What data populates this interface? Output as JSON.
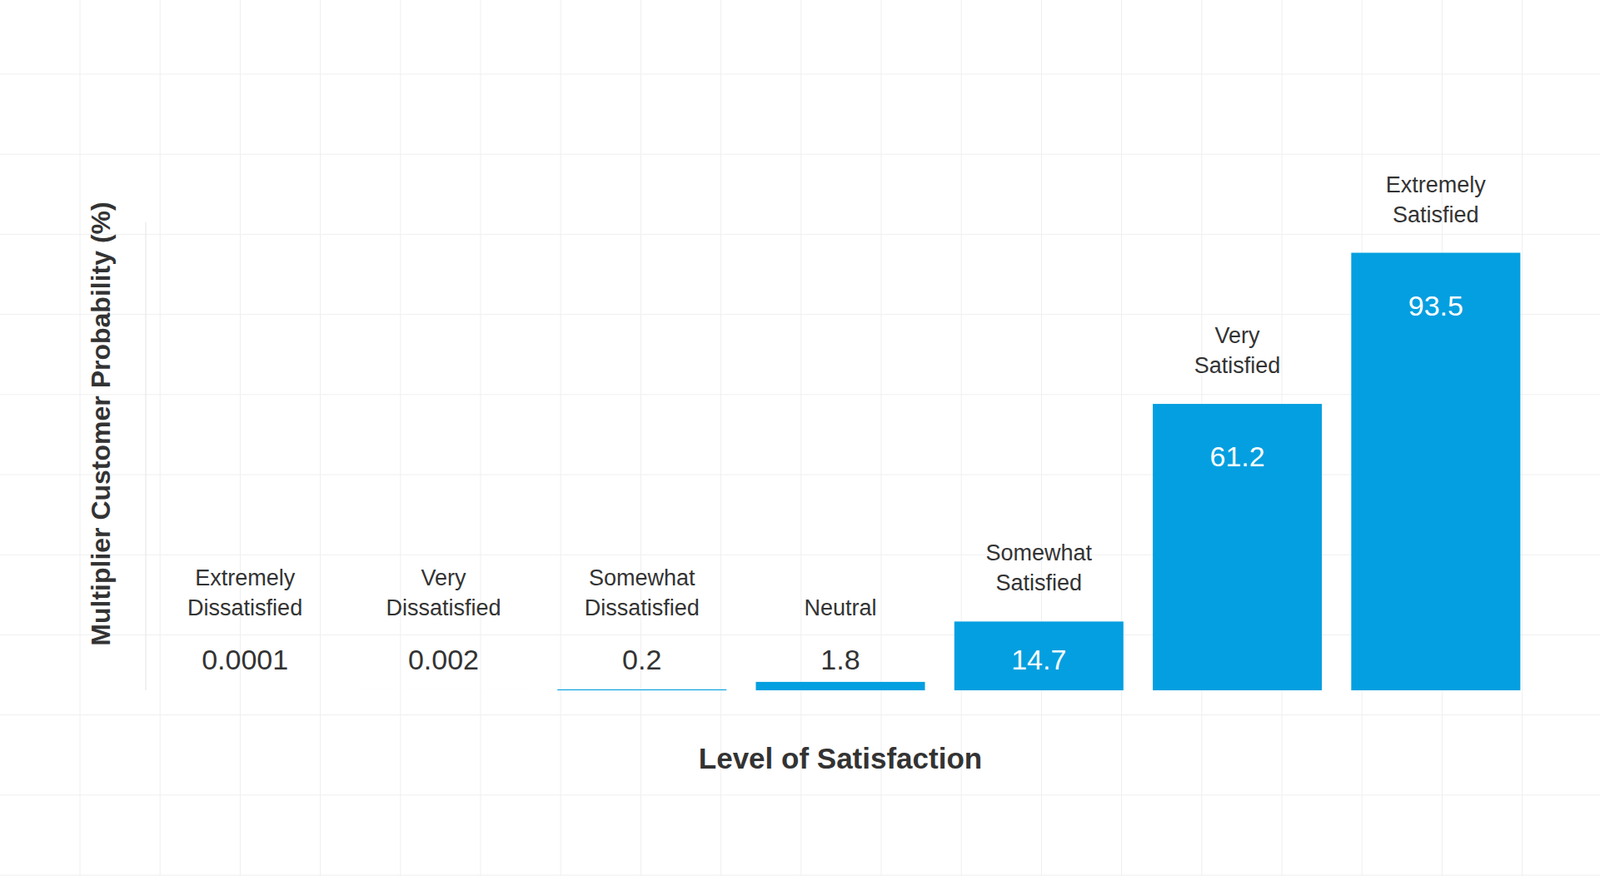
{
  "chart_data": {
    "type": "bar",
    "x_label": "Level of Satisfaction",
    "y_label": "Multiplier Customer Probability (%)",
    "categories": [
      "Extremely Dissatisfied",
      "Very Dissatisfied",
      "Somewhat Dissatisfied",
      "Neutral",
      "Somewhat Satisfied",
      "Very Satisfied",
      "Extremely Satisfied"
    ],
    "values": [
      0.0001,
      0.002,
      0.2,
      1.8,
      14.7,
      61.2,
      93.5
    ],
    "color": "#049fe0",
    "ylim": [
      0,
      100
    ],
    "yticks": [],
    "tick_labels": false,
    "data_labels": true
  }
}
